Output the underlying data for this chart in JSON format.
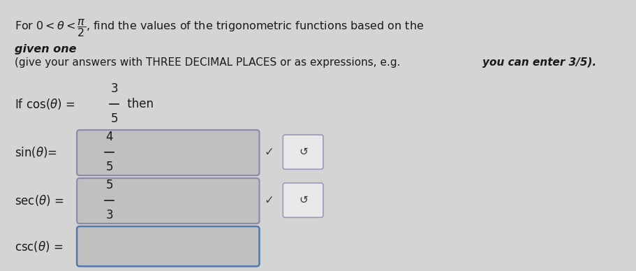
{
  "bg_color": "#d4d4d4",
  "text_color": "#1a1a1a",
  "box_fill": "#c0c0c0",
  "box_border_sin": "#8888aa",
  "box_border_sec": "#8888aa",
  "box_border_csc": "#5577aa",
  "small_box_fill": "#e8e8e8",
  "small_box_border": "#9999bb",
  "line1_all": "For $0 < \\theta < \\dfrac{\\pi}{2}$, find the values of the trigonometric functions based on the ",
  "line1_italic": "given one",
  "line2_normal": "(give your answers with THREE DECIMAL PLACES or as expressions, e.g. ",
  "line2_italic": "you can enter 3/5).",
  "line3_normal": "If cos(",
  "line3_theta": "θ",
  "line3_rest": ") =",
  "line3_frac_num": "3",
  "line3_frac_den": "5",
  "line3_then": "then",
  "row1_label": "sin(θ)=",
  "row1_frac_num": "4",
  "row1_frac_den": "5",
  "row2_label": "sec(θ) =",
  "row2_frac_num": "5",
  "row2_frac_den": "3",
  "row3_label": "csc(θ) =",
  "fig_width": 9.11,
  "fig_height": 3.88,
  "dpi": 100
}
